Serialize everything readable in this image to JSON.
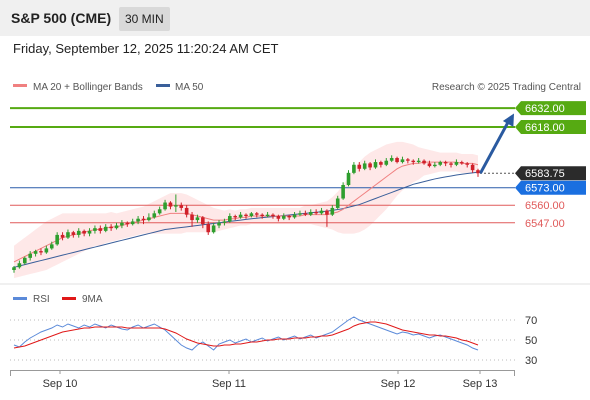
{
  "header": {
    "symbol": "S&P 500 (CME)",
    "interval": "30 MIN",
    "datetime": "Friday, September 12, 2025 11:20:24 AM CET"
  },
  "legend": {
    "bollinger": "MA 20 + Bollinger Bands",
    "ma50": "MA 50",
    "rsi": "RSI",
    "rsi_ma": "9MA",
    "copyright": "Research © 2025 Trading Central"
  },
  "colors": {
    "up": "#2e9e2e",
    "down": "#d0202a",
    "ma20": "#f08080",
    "ma50": "#3a5f9a",
    "band_fill": "#fde0e0",
    "target_line": "#56aa12",
    "support_line": "#e05a5a",
    "pivot_line": "#2a5caa",
    "arrow": "#2a5aa0",
    "current_price_bg": "#2b2b2b",
    "pivot_bg": "#1a6fe0",
    "rsi_line": "#5b8ad9",
    "rsi_ma_line": "#e01818"
  },
  "chart_data": [
    {
      "type": "candlestick",
      "title": "",
      "x_labels": [
        "Sep 10",
        "Sep 11",
        "Sep 12",
        "Sep 13"
      ],
      "ylim": [
        6512,
        6638
      ],
      "candles": [
        [
          6512,
          6514,
          6510,
          6515
        ],
        [
          6514,
          6517,
          6513,
          6519
        ],
        [
          6517,
          6521,
          6516,
          6522
        ],
        [
          6521,
          6524,
          6519,
          6526
        ],
        [
          6524,
          6526,
          6522,
          6527
        ],
        [
          6526,
          6525,
          6523,
          6528
        ],
        [
          6525,
          6528,
          6524,
          6530
        ],
        [
          6528,
          6531,
          6527,
          6533
        ],
        [
          6531,
          6538,
          6530,
          6540
        ],
        [
          6538,
          6536,
          6534,
          6540
        ],
        [
          6536,
          6540,
          6535,
          6542
        ],
        [
          6540,
          6538,
          6536,
          6541
        ],
        [
          6538,
          6541,
          6536,
          6543
        ],
        [
          6541,
          6539,
          6537,
          6542
        ],
        [
          6539,
          6541,
          6537,
          6543
        ],
        [
          6541,
          6543,
          6539,
          6545
        ],
        [
          6543,
          6541,
          6539,
          6545
        ],
        [
          6541,
          6544,
          6540,
          6546
        ],
        [
          6544,
          6543,
          6541,
          6546
        ],
        [
          6543,
          6545,
          6542,
          6547
        ],
        [
          6545,
          6547,
          6543,
          6549
        ],
        [
          6547,
          6546,
          6544,
          6548
        ],
        [
          6546,
          6548,
          6545,
          6550
        ],
        [
          6548,
          6550,
          6546,
          6552
        ],
        [
          6550,
          6549,
          6546,
          6552
        ],
        [
          6549,
          6551,
          6548,
          6554
        ],
        [
          6551,
          6554,
          6550,
          6556
        ],
        [
          6554,
          6557,
          6553,
          6559
        ],
        [
          6557,
          6562,
          6556,
          6564
        ],
        [
          6562,
          6559,
          6557,
          6563
        ],
        [
          6559,
          6560,
          6555,
          6568
        ],
        [
          6560,
          6558,
          6556,
          6562
        ],
        [
          6558,
          6553,
          6551,
          6560
        ],
        [
          6553,
          6549,
          6544,
          6555
        ],
        [
          6549,
          6551,
          6547,
          6553
        ],
        [
          6551,
          6546,
          6543,
          6552
        ],
        [
          6546,
          6540,
          6538,
          6548
        ],
        [
          6540,
          6545,
          6539,
          6547
        ],
        [
          6545,
          6547,
          6543,
          6549
        ],
        [
          6547,
          6548,
          6545,
          6550
        ],
        [
          6548,
          6552,
          6547,
          6554
        ],
        [
          6552,
          6551,
          6549,
          6553
        ],
        [
          6551,
          6553,
          6550,
          6555
        ],
        [
          6553,
          6552,
          6550,
          6554
        ],
        [
          6552,
          6554,
          6551,
          6555
        ],
        [
          6554,
          6553,
          6551,
          6555
        ],
        [
          6553,
          6552,
          6550,
          6554
        ],
        [
          6552,
          6553,
          6551,
          6555
        ],
        [
          6553,
          6552,
          6550,
          6554
        ],
        [
          6552,
          6550,
          6548,
          6553
        ],
        [
          6550,
          6552,
          6549,
          6554
        ],
        [
          6552,
          6551,
          6549,
          6553
        ],
        [
          6551,
          6553,
          6550,
          6555
        ],
        [
          6553,
          6554,
          6552,
          6556
        ],
        [
          6554,
          6553,
          6552,
          6556
        ],
        [
          6553,
          6555,
          6552,
          6557
        ],
        [
          6555,
          6554,
          6553,
          6557
        ],
        [
          6554,
          6556,
          6553,
          6558
        ],
        [
          6556,
          6553,
          6544,
          6557
        ],
        [
          6553,
          6558,
          6552,
          6560
        ],
        [
          6558,
          6565,
          6557,
          6567
        ],
        [
          6565,
          6575,
          6564,
          6577
        ],
        [
          6575,
          6584,
          6574,
          6586
        ],
        [
          6584,
          6590,
          6583,
          6592
        ],
        [
          6590,
          6587,
          6585,
          6592
        ],
        [
          6587,
          6591,
          6586,
          6593
        ],
        [
          6591,
          6588,
          6586,
          6592
        ],
        [
          6588,
          6592,
          6587,
          6594
        ],
        [
          6592,
          6590,
          6588,
          6593
        ],
        [
          6590,
          6593,
          6589,
          6595
        ],
        [
          6593,
          6595,
          6592,
          6597
        ],
        [
          6595,
          6592,
          6591,
          6596
        ],
        [
          6592,
          6594,
          6591,
          6596
        ],
        [
          6594,
          6593,
          6591,
          6595
        ],
        [
          6593,
          6592,
          6590,
          6594
        ],
        [
          6592,
          6593,
          6591,
          6595
        ],
        [
          6593,
          6591,
          6590,
          6594
        ],
        [
          6591,
          6589,
          6588,
          6593
        ],
        [
          6589,
          6590,
          6588,
          6592
        ],
        [
          6590,
          6592,
          6589,
          6593
        ],
        [
          6592,
          6591,
          6589,
          6593
        ],
        [
          6591,
          6590,
          6588,
          6592
        ],
        [
          6590,
          6592,
          6589,
          6594
        ],
        [
          6592,
          6591,
          6590,
          6593
        ],
        [
          6591,
          6590,
          6588,
          6592
        ],
        [
          6590,
          6586,
          6584,
          6591
        ],
        [
          6586,
          6583.75,
          6581,
          6587
        ]
      ],
      "series": [
        {
          "name": "MA 20",
          "values": [
            6518,
            6520,
            6522,
            6524,
            6526,
            6528,
            6530,
            6532,
            6534,
            6536,
            6537,
            6538,
            6539,
            6540,
            6541,
            6542,
            6542,
            6543,
            6544,
            6544,
            6545,
            6546,
            6547,
            6548,
            6549,
            6550,
            6551,
            6552,
            6553,
            6554,
            6554,
            6554,
            6554,
            6553,
            6552,
            6551,
            6550,
            6549,
            6549,
            6549,
            6550,
            6550,
            6551,
            6551,
            6552,
            6552,
            6552,
            6552,
            6552,
            6552,
            6552,
            6552,
            6552,
            6552,
            6553,
            6553,
            6553,
            6553,
            6553,
            6554,
            6555,
            6557,
            6560,
            6563,
            6566,
            6569,
            6572,
            6575,
            6578,
            6581,
            6584,
            6587,
            6589,
            6590,
            6591,
            6591,
            6592,
            6592,
            6592,
            6592,
            6592,
            6592,
            6592,
            6591,
            6591,
            6591,
            6590
          ]
        },
        {
          "name": "MA 50",
          "values": [
            6514,
            6515,
            6516,
            6517,
            6518,
            6519,
            6520,
            6521,
            6522,
            6523,
            6524,
            6525,
            6526,
            6527,
            6528,
            6529,
            6530,
            6531,
            6532,
            6533,
            6534,
            6535,
            6536,
            6537,
            6538,
            6539,
            6540,
            6541,
            6542,
            6542.5,
            6543,
            6543.5,
            6544,
            6544.5,
            6545,
            6545.5,
            6546,
            6546.5,
            6547,
            6547.5,
            6548,
            6548.5,
            6549,
            6549.5,
            6550,
            6550.4,
            6550.8,
            6551.2,
            6551.6,
            6552,
            6552.4,
            6552.8,
            6553.2,
            6553.6,
            6554,
            6554.4,
            6554.8,
            6555.2,
            6555.6,
            6556.2,
            6556.8,
            6557.5,
            6558.5,
            6559.5,
            6560.5,
            6562,
            6563.5,
            6565,
            6566.5,
            6568,
            6569.5,
            6571,
            6572.5,
            6574,
            6575.5,
            6576.5,
            6577.5,
            6578.5,
            6579.5,
            6580.3,
            6581,
            6581.7,
            6582.4,
            6583,
            6583.5,
            6584,
            6584.5
          ]
        },
        {
          "name": "Bollinger Band width",
          "values": [
            12,
            13,
            14,
            15,
            16,
            17,
            18,
            18,
            18,
            18,
            17,
            16,
            15,
            14,
            13,
            12,
            12,
            11,
            11,
            10,
            10,
            10,
            10,
            10,
            10,
            11,
            12,
            13,
            14,
            15,
            15,
            15,
            14,
            13,
            12,
            11,
            10,
            9,
            8,
            7,
            7,
            6,
            6,
            6,
            6,
            6,
            6,
            6,
            6,
            6,
            6,
            6,
            6,
            6,
            7,
            7,
            8,
            9,
            10,
            12,
            15,
            18,
            21,
            24,
            26,
            27,
            27,
            26,
            25,
            24,
            22,
            20,
            18,
            16,
            14,
            12,
            10,
            9,
            8,
            7,
            7,
            7,
            7,
            7,
            7,
            7,
            7
          ]
        }
      ],
      "levels": [
        {
          "label": "6632.00",
          "value": 6632,
          "kind": "target"
        },
        {
          "label": "6618.00",
          "value": 6618,
          "kind": "target"
        },
        {
          "label": "6583.75",
          "value": 6583.75,
          "kind": "current"
        },
        {
          "label": "6573.00",
          "value": 6573,
          "kind": "pivot"
        },
        {
          "label": "6560.00",
          "value": 6560,
          "kind": "support"
        },
        {
          "label": "6547.00",
          "value": 6547,
          "kind": "support"
        }
      ]
    },
    {
      "type": "line",
      "title": "RSI",
      "ylim": [
        20,
        80
      ],
      "y_ticks": [
        70,
        50,
        30
      ],
      "series": [
        {
          "name": "RSI",
          "values": [
            45,
            43,
            48,
            52,
            55,
            58,
            60,
            62,
            65,
            63,
            66,
            64,
            62,
            65,
            63,
            66,
            64,
            62,
            65,
            63,
            61,
            60,
            63,
            65,
            62,
            64,
            66,
            63,
            60,
            55,
            50,
            45,
            42,
            40,
            45,
            48,
            44,
            40,
            46,
            48,
            50,
            47,
            49,
            51,
            48,
            50,
            52,
            49,
            51,
            53,
            50,
            52,
            54,
            51,
            53,
            55,
            52,
            54,
            56,
            58,
            62,
            66,
            70,
            73,
            70,
            68,
            66,
            64,
            62,
            60,
            58,
            56,
            58,
            57,
            55,
            56,
            54,
            52,
            54,
            55,
            53,
            51,
            49,
            47,
            45,
            42,
            40
          ]
        },
        {
          "name": "9MA",
          "values": [
            42,
            43,
            44,
            46,
            48,
            50,
            52,
            54,
            56,
            58,
            59,
            60,
            61,
            62,
            62,
            63,
            63,
            63,
            63,
            63,
            63,
            62,
            62,
            62,
            62,
            62,
            62,
            62,
            61,
            59,
            57,
            54,
            51,
            49,
            47,
            46,
            45,
            44,
            44,
            45,
            45,
            46,
            46,
            47,
            48,
            48,
            49,
            50,
            50,
            51,
            51,
            51,
            52,
            52,
            52,
            53,
            53,
            54,
            54,
            55,
            57,
            59,
            61,
            64,
            66,
            67,
            68,
            68,
            67,
            66,
            64,
            62,
            60,
            59,
            58,
            57,
            56,
            55,
            55,
            54,
            54,
            53,
            52,
            50,
            49,
            47,
            45
          ]
        }
      ]
    }
  ]
}
